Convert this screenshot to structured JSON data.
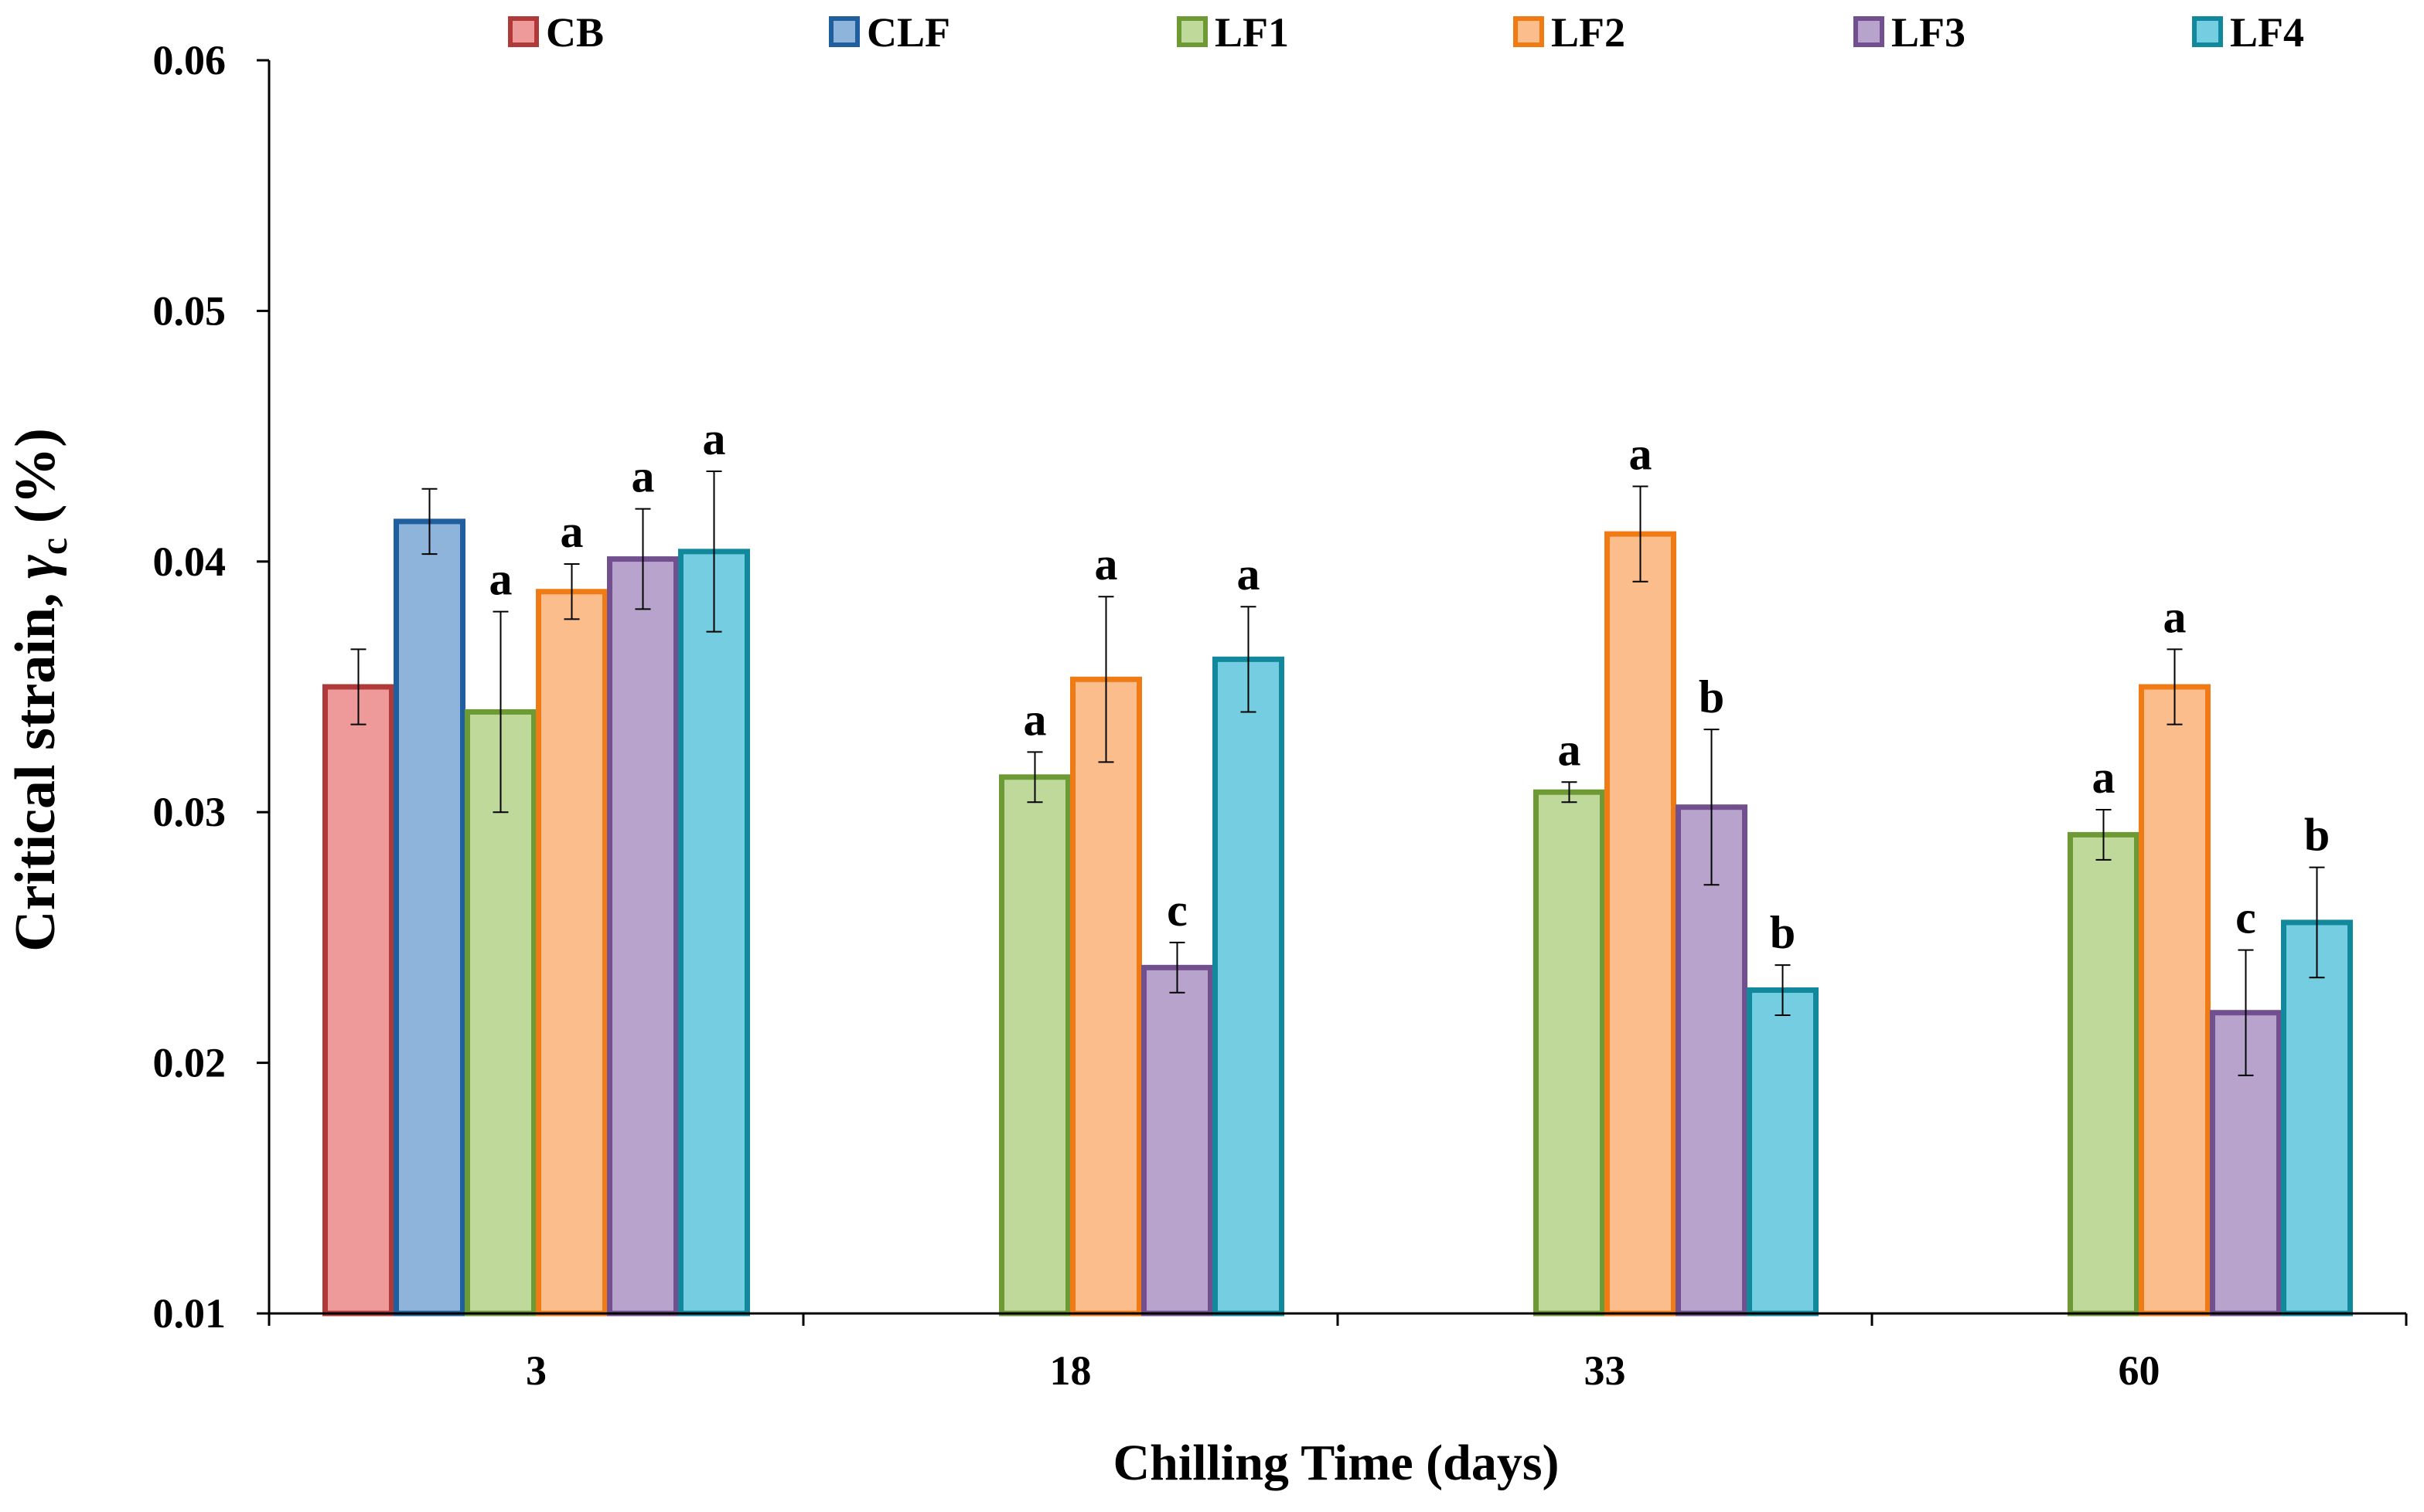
{
  "chart_data": {
    "type": "bar",
    "xlabel": "Chilling Time (days)",
    "ylabel": {
      "prefix": "Critical strain, ",
      "symbol": "γ",
      "subscript": "c",
      "suffix": " (%)"
    },
    "ylim": [
      0.01,
      0.06
    ],
    "yticks": [
      "0.01",
      "0.02",
      "0.03",
      "0.04",
      "0.05",
      "0.06"
    ],
    "grid": false,
    "legend_position": "top",
    "categories": [
      "3",
      "18",
      "33",
      "60"
    ],
    "series": [
      {
        "name": "CB",
        "fill": "#ef9a9a",
        "stroke": "#b03a3a",
        "values": [
          0.035,
          null,
          null,
          null
        ],
        "errors": [
          0.0015,
          null,
          null,
          null
        ],
        "labels": [
          "",
          "",
          "",
          ""
        ]
      },
      {
        "name": "CLF",
        "fill": "#8fb4dc",
        "stroke": "#1f5f9e",
        "values": [
          0.0416,
          null,
          null,
          null
        ],
        "errors": [
          0.0013,
          null,
          null,
          null
        ],
        "labels": [
          "",
          "",
          "",
          ""
        ]
      },
      {
        "name": "LF1",
        "fill": "#bfd99b",
        "stroke": "#6e9a35",
        "values": [
          0.034,
          0.0314,
          0.0308,
          0.0291
        ],
        "errors": [
          0.004,
          0.001,
          0.0004,
          0.001
        ],
        "labels": [
          "a",
          "a",
          "a",
          "a"
        ]
      },
      {
        "name": "LF2",
        "fill": "#fcbd8c",
        "stroke": "#f07a14",
        "values": [
          0.0388,
          0.0353,
          0.0411,
          0.035
        ],
        "errors": [
          0.0011,
          0.0033,
          0.0019,
          0.0015
        ],
        "labels": [
          "a",
          "a",
          "a",
          "a"
        ]
      },
      {
        "name": "LF3",
        "fill": "#b8a3cc",
        "stroke": "#72508f",
        "values": [
          0.0401,
          0.0238,
          0.0302,
          0.022
        ],
        "errors": [
          0.002,
          0.001,
          0.0031,
          0.0025
        ],
        "labels": [
          "a",
          "c",
          "b",
          "c"
        ]
      },
      {
        "name": "LF4",
        "fill": "#74cde0",
        "stroke": "#11889c",
        "values": [
          0.0404,
          0.0361,
          0.0229,
          0.0256
        ],
        "errors": [
          0.0032,
          0.0021,
          0.001,
          0.0022
        ],
        "labels": [
          "a",
          "a",
          "b",
          "b"
        ]
      }
    ]
  }
}
